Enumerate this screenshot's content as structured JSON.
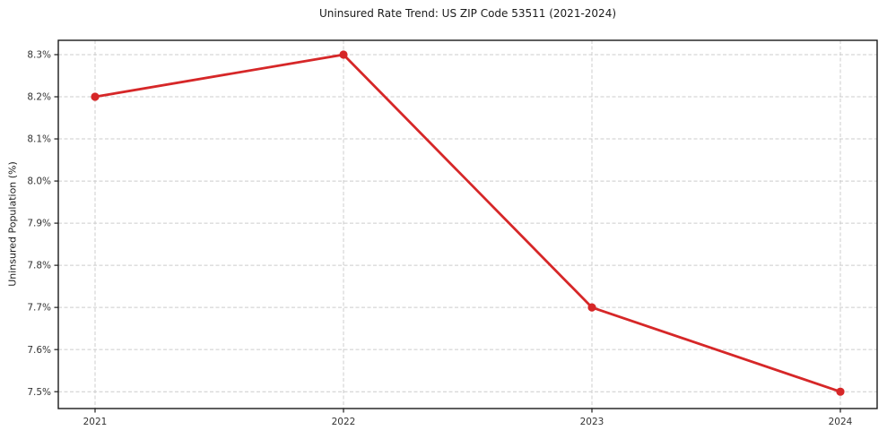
{
  "chart_data": {
    "type": "line",
    "title": "Uninsured Rate Trend: US ZIP Code 53511 (2021-2024)",
    "xlabel": "",
    "ylabel": "Uninsured Population (%)",
    "categories": [
      "2021",
      "2022",
      "2023",
      "2024"
    ],
    "series": [
      {
        "name": "Uninsured rate",
        "values": [
          8.2,
          8.3,
          7.7,
          7.5
        ]
      }
    ],
    "yticks": [
      7.5,
      7.6,
      7.7,
      7.8,
      7.9,
      8.0,
      8.1,
      8.2,
      8.3
    ],
    "ytick_labels": [
      "7.5%",
      "7.6%",
      "7.7%",
      "7.8%",
      "7.9%",
      "8.0%",
      "8.1%",
      "8.2%",
      "8.3%"
    ],
    "ylim": [
      7.46,
      8.334
    ],
    "grid": true,
    "grid_style": "dashed",
    "legend": false,
    "marker": "circle",
    "line_color": "#d62728",
    "grid_color": "#cccccc",
    "axis_color": "#1a1a1a",
    "text_color": "#333333"
  }
}
